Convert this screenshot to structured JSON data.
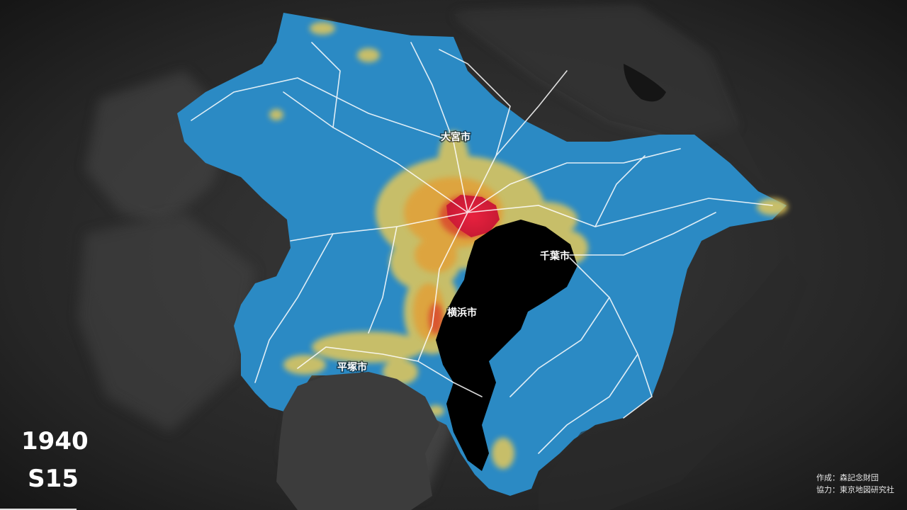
{
  "map": {
    "year": "1940",
    "era": "S15",
    "cities": [
      {
        "id": "omiya",
        "name": "大宮市"
      },
      {
        "id": "chiba",
        "name": "千葉市"
      },
      {
        "id": "yokohama",
        "name": "横浜市"
      },
      {
        "id": "hiratsuka",
        "name": "平塚市"
      }
    ],
    "credits": {
      "author": "作成：森記念財団",
      "cooperation": "協力：東京地図研究社"
    },
    "colors": {
      "background": "#1c1c1c",
      "terrain": "#3a3a3a",
      "bay_water": "#000000",
      "region_fill": "#2b8ac4",
      "density_low": "#e3c85a",
      "density_mid": "#e0a23b",
      "density_high": "#d94e2e",
      "density_core": "#d81f3a",
      "roads": "#ffffff"
    }
  }
}
